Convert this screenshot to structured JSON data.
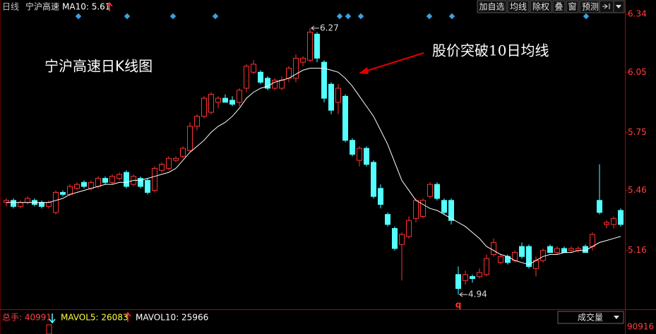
{
  "chart_data": {
    "type": "candlestick",
    "title": "宁沪高速日K线图",
    "annotation": "股价突破10日均线",
    "up_color": "#ff3232",
    "down_color": "#54ffff",
    "open": [
      5.4,
      5.41,
      5.38,
      5.4,
      5.41,
      5.4,
      5.38,
      5.35,
      5.45,
      5.44,
      5.47,
      5.5,
      5.47,
      5.48,
      5.52,
      5.5,
      5.52,
      5.55,
      5.49,
      5.52,
      5.51,
      5.46,
      5.56,
      5.57,
      5.61,
      5.63,
      5.66,
      5.78,
      5.83,
      5.85,
      5.9,
      5.92,
      5.91,
      5.9,
      5.97,
      6.05,
      6.05,
      6.02,
      5.97,
      5.97,
      6.02,
      6.02,
      6.1,
      6.11,
      6.24,
      6.1,
      5.99,
      5.9,
      5.93,
      5.71,
      5.61,
      5.67,
      5.6,
      5.47,
      5.34,
      5.27,
      5.19,
      5.23,
      5.32,
      5.33,
      5.43,
      5.49,
      5.41,
      5.41,
      5.04,
      5.01,
      5.03,
      5.03,
      5.04,
      5.14,
      5.1,
      5.13,
      5.11,
      5.18,
      5.18,
      5.07,
      5.11,
      5.18,
      5.15,
      5.17,
      5.16,
      5.16,
      5.18,
      5.18,
      5.41,
      5.29,
      5.29,
      5.36
    ],
    "high": [
      5.42,
      5.42,
      5.41,
      5.43,
      5.42,
      5.41,
      5.41,
      5.46,
      5.46,
      5.49,
      5.5,
      5.51,
      5.51,
      5.53,
      5.53,
      5.54,
      5.55,
      5.56,
      5.54,
      5.53,
      5.52,
      5.58,
      5.6,
      5.63,
      5.63,
      5.68,
      5.8,
      5.84,
      5.93,
      5.95,
      5.93,
      5.94,
      5.93,
      5.97,
      6.09,
      6.11,
      6.06,
      6.03,
      6.02,
      6.03,
      6.08,
      6.14,
      6.13,
      6.27,
      6.25,
      6.11,
      6.0,
      5.99,
      5.94,
      5.72,
      5.68,
      5.68,
      5.61,
      5.49,
      5.35,
      5.28,
      5.25,
      5.33,
      5.42,
      5.42,
      5.5,
      5.5,
      5.42,
      5.42,
      5.08,
      5.06,
      5.04,
      5.07,
      5.14,
      5.22,
      5.14,
      5.14,
      5.16,
      5.2,
      5.19,
      5.13,
      5.17,
      5.19,
      5.18,
      5.18,
      5.18,
      5.18,
      5.19,
      5.25,
      5.59,
      5.31,
      5.33,
      5.37
    ],
    "low": [
      5.38,
      5.37,
      5.37,
      5.39,
      5.38,
      5.37,
      5.37,
      5.34,
      5.43,
      5.43,
      5.46,
      5.47,
      5.46,
      5.47,
      5.49,
      5.49,
      5.51,
      5.47,
      5.48,
      5.47,
      5.44,
      5.45,
      5.55,
      5.56,
      5.6,
      5.62,
      5.65,
      5.76,
      5.82,
      5.84,
      5.87,
      5.9,
      5.88,
      5.88,
      5.95,
      6.04,
      5.99,
      5.96,
      5.96,
      5.96,
      6.0,
      6.0,
      6.08,
      6.1,
      6.1,
      5.9,
      5.84,
      5.84,
      5.7,
      5.63,
      5.58,
      5.58,
      5.42,
      5.37,
      5.28,
      5.16,
      5.01,
      5.22,
      5.3,
      5.32,
      5.42,
      5.41,
      5.34,
      5.29,
      4.94,
      4.99,
      5.0,
      5.02,
      5.03,
      5.13,
      5.09,
      5.09,
      5.1,
      5.12,
      5.07,
      5.03,
      5.1,
      5.15,
      5.14,
      5.15,
      5.15,
      5.15,
      5.15,
      5.16,
      5.34,
      5.27,
      5.27,
      5.28
    ],
    "close": [
      5.41,
      5.38,
      5.4,
      5.42,
      5.39,
      5.38,
      5.4,
      5.45,
      5.44,
      5.48,
      5.49,
      5.48,
      5.5,
      5.52,
      5.5,
      5.53,
      5.54,
      5.48,
      5.53,
      5.48,
      5.45,
      5.57,
      5.59,
      5.62,
      5.62,
      5.67,
      5.78,
      5.83,
      5.92,
      5.94,
      5.92,
      5.9,
      5.89,
      5.96,
      6.08,
      6.09,
      6.0,
      5.97,
      6.01,
      6.01,
      6.07,
      6.12,
      6.12,
      6.25,
      6.12,
      5.92,
      5.86,
      5.97,
      5.71,
      5.64,
      5.67,
      5.59,
      5.43,
      5.39,
      5.29,
      5.17,
      5.24,
      5.31,
      5.41,
      5.41,
      5.49,
      5.42,
      5.35,
      5.31,
      4.97,
      5.04,
      5.02,
      5.05,
      5.12,
      5.2,
      5.13,
      5.1,
      5.15,
      5.13,
      5.08,
      5.11,
      5.16,
      5.15,
      5.17,
      5.15,
      5.17,
      5.17,
      5.15,
      5.24,
      5.35,
      5.3,
      5.32,
      5.29
    ],
    "ma": {
      "color": "#ffffff",
      "values": [
        5.4,
        5.4,
        5.4,
        5.4,
        5.4,
        5.4,
        5.4,
        5.41,
        5.42,
        5.44,
        5.45,
        5.46,
        5.47,
        5.48,
        5.49,
        5.49,
        5.5,
        5.5,
        5.51,
        5.51,
        5.52,
        5.53,
        5.54,
        5.55,
        5.57,
        5.61,
        5.65,
        5.68,
        5.71,
        5.75,
        5.78,
        5.8,
        5.83,
        5.87,
        5.92,
        5.95,
        5.97,
        5.98,
        6.0,
        6.01,
        6.02,
        6.04,
        6.06,
        6.07,
        6.07,
        6.07,
        6.06,
        6.05,
        6.02,
        5.98,
        5.93,
        5.88,
        5.83,
        5.76,
        5.69,
        5.6,
        5.51,
        5.46,
        5.41,
        5.39,
        5.37,
        5.36,
        5.34,
        5.32,
        5.3,
        5.28,
        5.25,
        5.22,
        5.18,
        5.16,
        5.14,
        5.13,
        5.11,
        5.1,
        5.09,
        5.11,
        5.13,
        5.14,
        5.14,
        5.15,
        5.15,
        5.16,
        5.16,
        5.18,
        5.2,
        5.21,
        5.22,
        5.23
      ]
    },
    "ylim": [
      4.87,
      6.34
    ],
    "yticks": [
      6.34,
      6.05,
      5.75,
      5.46,
      5.16
    ],
    "low_flag": "q"
  },
  "header": {
    "period": "日线",
    "name": "宁沪高速",
    "ma_label": "MA10: 5.61"
  },
  "toolbar": {
    "buttons": [
      "加自选",
      "均线",
      "除权",
      "叠",
      "窗",
      "预测"
    ]
  },
  "volume_panel": {
    "total": "总手: 40991",
    "mavol5": "MAVOL5: 26083",
    "mavol10": "MAVOL10: 25966",
    "selector": "成交量",
    "axis_max": "90916"
  }
}
